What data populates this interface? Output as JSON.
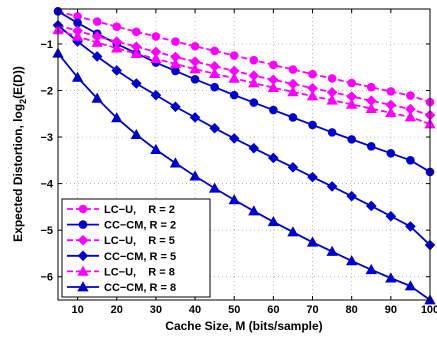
{
  "chart_data": {
    "type": "line",
    "xlabel": "Cache Size, M (bits/sample)",
    "ylabel_main": "Expected Distortion, log",
    "ylabel_sub": "2",
    "ylabel_tail": "(E(D))",
    "xlim": [
      5,
      100
    ],
    "ylim": [
      -6.5,
      -0.25
    ],
    "x_ticks": [
      10,
      20,
      30,
      40,
      50,
      60,
      70,
      80,
      90,
      100
    ],
    "y_ticks": [
      -1,
      -2,
      -3,
      -4,
      -5,
      -6
    ],
    "grid": true,
    "legend_position": "bottom-left",
    "x": [
      5,
      10,
      15,
      20,
      25,
      30,
      35,
      40,
      45,
      50,
      55,
      60,
      65,
      70,
      75,
      80,
      85,
      90,
      95,
      100
    ],
    "series": [
      {
        "name": "LC−U,    R = 2",
        "color": "#ff00ff",
        "dashed": true,
        "marker": "circle",
        "values": [
          -0.3,
          -0.41,
          -0.52,
          -0.63,
          -0.74,
          -0.84,
          -0.95,
          -1.05,
          -1.15,
          -1.25,
          -1.35,
          -1.45,
          -1.55,
          -1.65,
          -1.74,
          -1.84,
          -1.93,
          -2.02,
          -2.11,
          -2.25
        ]
      },
      {
        "name": "CC−CM, R = 2",
        "color": "#0000cc",
        "dashed": false,
        "marker": "circle",
        "values": [
          -0.3,
          -0.55,
          -0.78,
          -1.0,
          -1.2,
          -1.4,
          -1.58,
          -1.76,
          -1.93,
          -2.1,
          -2.26,
          -2.42,
          -2.58,
          -2.74,
          -2.9,
          -3.05,
          -3.2,
          -3.35,
          -3.5,
          -3.75
        ]
      },
      {
        "name": "LC−U,    R = 5",
        "color": "#ff00ff",
        "dashed": true,
        "marker": "diamond",
        "values": [
          -0.6,
          -0.72,
          -0.84,
          -0.95,
          -1.06,
          -1.17,
          -1.28,
          -1.38,
          -1.48,
          -1.58,
          -1.68,
          -1.77,
          -1.86,
          -1.95,
          -2.04,
          -2.13,
          -2.22,
          -2.31,
          -2.4,
          -2.53
        ]
      },
      {
        "name": "CC−CM, R = 5",
        "color": "#0000cc",
        "dashed": false,
        "marker": "diamond",
        "values": [
          -0.6,
          -0.95,
          -1.27,
          -1.57,
          -1.85,
          -2.1,
          -2.35,
          -2.58,
          -2.81,
          -3.03,
          -3.24,
          -3.45,
          -3.65,
          -3.86,
          -4.06,
          -4.27,
          -4.48,
          -4.7,
          -4.92,
          -5.32
        ]
      },
      {
        "name": "LC−U,    R = 8",
        "color": "#ff00ff",
        "dashed": true,
        "marker": "triangle",
        "values": [
          -0.7,
          -0.84,
          -0.97,
          -1.09,
          -1.21,
          -1.32,
          -1.43,
          -1.54,
          -1.64,
          -1.74,
          -1.84,
          -1.94,
          -2.03,
          -2.12,
          -2.21,
          -2.3,
          -2.39,
          -2.48,
          -2.57,
          -2.72
        ]
      },
      {
        "name": "CC−CM, R = 8",
        "color": "#0000cc",
        "dashed": false,
        "marker": "triangle",
        "values": [
          -1.2,
          -1.72,
          -2.17,
          -2.59,
          -2.95,
          -3.27,
          -3.56,
          -3.84,
          -4.1,
          -4.35,
          -4.59,
          -4.82,
          -5.04,
          -5.26,
          -5.46,
          -5.66,
          -5.85,
          -6.03,
          -6.2,
          -6.5
        ]
      }
    ]
  }
}
